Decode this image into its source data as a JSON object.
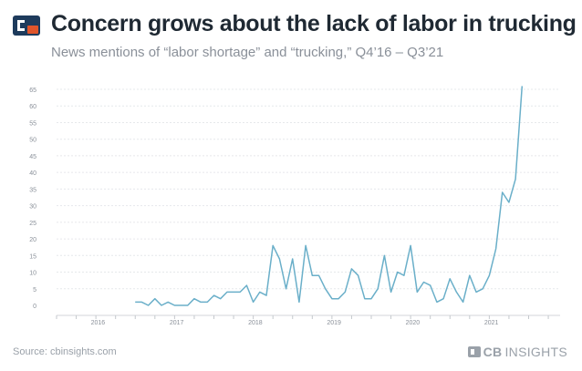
{
  "header": {
    "title": "Concern grows about the lack of labor in trucking",
    "subtitle": "News mentions of “labor shortage” and “trucking,” Q4’16 – Q3’21"
  },
  "footer": {
    "source": "Source: cbinsights.com",
    "brand_cb": "CB",
    "brand_rest": "INSIGHTS"
  },
  "colors": {
    "line": "#6aafc9",
    "grid": "#e6e8eb",
    "brand": "#e0552b",
    "brand_dark": "#1e3b5c"
  },
  "icons": {
    "logo": "cb-insights-logo-icon"
  },
  "chart_data": {
    "type": "line",
    "title": "Concern grows about the lack of labor in trucking",
    "subtitle": "News mentions of “labor shortage” and “trucking,” Q4’16 – Q3’21",
    "xlabel": "",
    "ylabel": "",
    "ylim": [
      0,
      65
    ],
    "yticks": [
      0,
      5,
      10,
      15,
      20,
      25,
      30,
      35,
      40,
      45,
      50,
      55,
      60,
      65
    ],
    "xlim": [
      2015.75,
      2022.15
    ],
    "xticks": [
      {
        "value": 2016.0,
        "label": "2016"
      },
      {
        "value": 2017.0,
        "label": "2017"
      },
      {
        "value": 2018.0,
        "label": "2018"
      },
      {
        "value": 2019.0,
        "label": "2019"
      },
      {
        "value": 2020.0,
        "label": "2020"
      },
      {
        "value": 2021.0,
        "label": "2021"
      }
    ],
    "grid": true,
    "legend": "none",
    "series": [
      {
        "start": 2016.75,
        "step_months": 1,
        "values": [
          1,
          1,
          0,
          2,
          0,
          1,
          0,
          0,
          0,
          2,
          1,
          1,
          3,
          2,
          4,
          4,
          4,
          6,
          1,
          4,
          3,
          18,
          14,
          5,
          14,
          1,
          18,
          9,
          9,
          5,
          2,
          2,
          4,
          11,
          9,
          2,
          2,
          5,
          15,
          4,
          10,
          9,
          18,
          4,
          7,
          6,
          1,
          2,
          8,
          4,
          1,
          9,
          4,
          5,
          9,
          17,
          34,
          31,
          38,
          66
        ]
      }
    ]
  }
}
